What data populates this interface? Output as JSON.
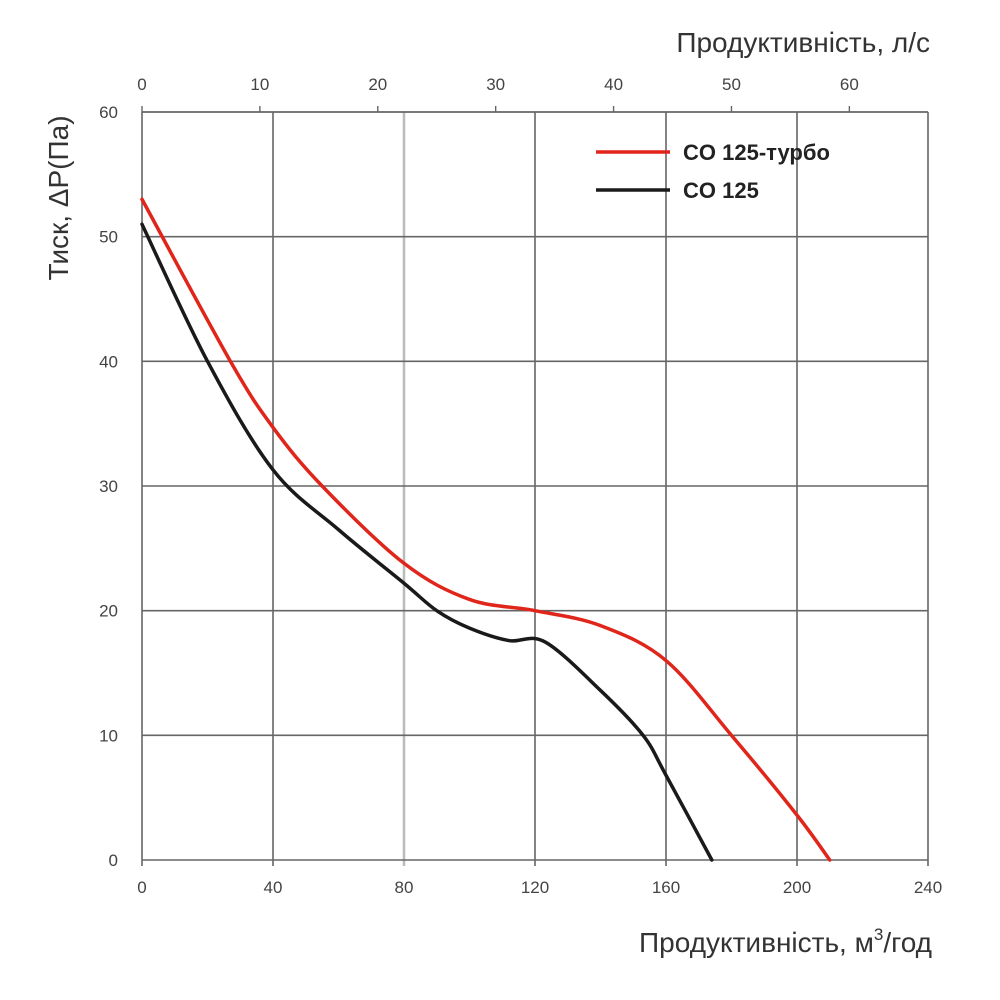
{
  "chart_data": {
    "type": "line",
    "xlabel": "Продуктивність, м³/год",
    "xlabel_main": "Продуктивність, м",
    "xlabel_sup": "3",
    "xlabel_tail": "/год",
    "x2label": "Продуктивність, л/с",
    "ylabel": "Тиск, ΔP(Па)",
    "xlim": [
      0,
      240
    ],
    "ylim": [
      0,
      60
    ],
    "x2lim": [
      0,
      66.67
    ],
    "xticks": [
      0,
      40,
      80,
      120,
      160,
      200,
      240
    ],
    "x2ticks": [
      0,
      10,
      20,
      30,
      40,
      50,
      60
    ],
    "yticks": [
      0,
      10,
      20,
      30,
      40,
      50,
      60
    ],
    "grid": true,
    "legend_position": "top-right",
    "series": [
      {
        "name": "CO 125-турбо",
        "color": "#e0251b",
        "x": [
          0,
          27,
          40,
          55,
          80,
          100,
          120,
          140,
          160,
          180,
          200,
          210
        ],
        "y": [
          53,
          40,
          34.7,
          30,
          23.8,
          20.9,
          20,
          18.8,
          16,
          10,
          3.6,
          0
        ]
      },
      {
        "name": "CO 125",
        "color": "#1a1a1a",
        "x": [
          0,
          20,
          40,
          60,
          80,
          90,
          100,
          112,
          123,
          140,
          153,
          160,
          174
        ],
        "y": [
          51,
          40,
          31.3,
          26.5,
          22.2,
          20,
          18.6,
          17.6,
          17.5,
          13.6,
          10,
          6.8,
          0
        ]
      }
    ]
  }
}
